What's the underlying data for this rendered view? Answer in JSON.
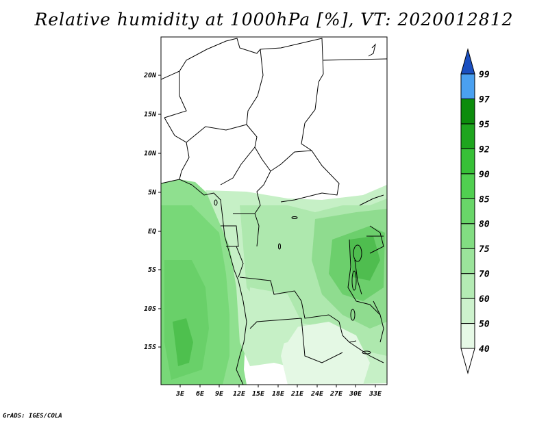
{
  "title": "Relative humidity at 1000hPa [%], VT: 2020012812",
  "credit": "GrADS: IGES/COLA",
  "map": {
    "lon_labels": [
      "3E",
      "6E",
      "9E",
      "12E",
      "15E",
      "18E",
      "21E",
      "24E",
      "27E",
      "30E",
      "33E"
    ],
    "lat_labels": [
      "20N",
      "15N",
      "10N",
      "5N",
      "EQ",
      "5S",
      "10S",
      "15S"
    ]
  },
  "colorbar": {
    "levels": [
      "40",
      "50",
      "60",
      "70",
      "75",
      "80",
      "85",
      "90",
      "92",
      "95",
      "97",
      "99"
    ],
    "colors": [
      "#ffffff",
      "#e6f9e6",
      "#cdf2cd",
      "#b4ebb4",
      "#9be49b",
      "#82dd82",
      "#69d669",
      "#50cf50",
      "#37c037",
      "#1ea51e",
      "#0c8c0c",
      "#4aa0f0",
      "#2a78e0",
      "#1a4fc0"
    ]
  }
}
